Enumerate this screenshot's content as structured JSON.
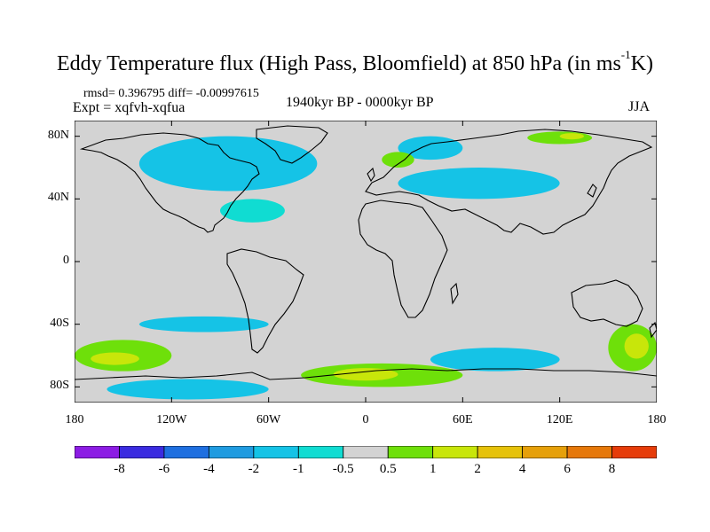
{
  "title": {
    "text": "Eddy Temperature flux (High Pass, Bloomfield) at 850 hPa (in ms",
    "sup": "-1",
    "suffix": "K)"
  },
  "stats_line": "rmsd= 0.396795 diff= -0.00997615",
  "experiment": "Expt = xqfvh-xqfua",
  "period": "1940kyr BP - 0000kyr BP",
  "season": "JJA",
  "map": {
    "y_ticks": [
      "80N",
      "40N",
      "0",
      "40S",
      "80S"
    ],
    "x_ticks": [
      "180",
      "120W",
      "60W",
      "0",
      "60E",
      "120E",
      "180"
    ],
    "ocean_color": "#d3d3d3",
    "coast_color": "#000000"
  },
  "colorbar": {
    "labels": [
      "-8",
      "-6",
      "-4",
      "-2",
      "-1",
      "-0.5",
      "0.5",
      "1",
      "2",
      "4",
      "6",
      "8"
    ],
    "colors": [
      "#8c1ce4",
      "#3a2be0",
      "#1e6fe0",
      "#1f9be0",
      "#15c3e6",
      "#10dcd2",
      "#d3d3d3",
      "#6ee00a",
      "#c8e60a",
      "#e6c20a",
      "#e6a00a",
      "#e6780a",
      "#e63c0a"
    ]
  },
  "chart_data": {
    "type": "heatmap",
    "projection": "cylindrical equidistant",
    "xlim": [
      -180,
      180
    ],
    "ylim": [
      -90,
      90
    ],
    "x_ticks": [
      -180,
      -120,
      -60,
      0,
      60,
      120,
      180
    ],
    "y_ticks": [
      80,
      40,
      0,
      -40,
      -80
    ],
    "contour_levels": [
      -8,
      -6,
      -4,
      -2,
      -1,
      -0.5,
      0.5,
      1,
      2,
      4,
      6,
      8
    ],
    "regions": [
      {
        "level_index": 4,
        "lon": [
          -140,
          -30
        ],
        "lat": [
          45,
          80
        ]
      },
      {
        "level_index": 5,
        "lon": [
          -90,
          -50
        ],
        "lat": [
          25,
          40
        ]
      },
      {
        "level_index": 4,
        "lon": [
          20,
          60
        ],
        "lat": [
          65,
          80
        ]
      },
      {
        "level_index": 7,
        "lon": [
          100,
          140
        ],
        "lat": [
          75,
          83
        ]
      },
      {
        "level_index": 8,
        "lon": [
          120,
          135
        ],
        "lat": [
          78,
          82
        ]
      },
      {
        "level_index": 4,
        "lon": [
          20,
          120
        ],
        "lat": [
          40,
          60
        ]
      },
      {
        "level_index": 7,
        "lon": [
          10,
          30
        ],
        "lat": [
          60,
          70
        ]
      },
      {
        "level_index": 4,
        "lon": [
          -140,
          -60
        ],
        "lat": [
          -45,
          -35
        ]
      },
      {
        "level_index": 7,
        "lon": [
          -180,
          -120
        ],
        "lat": [
          -70,
          -50
        ]
      },
      {
        "level_index": 8,
        "lon": [
          -170,
          -140
        ],
        "lat": [
          -66,
          -58
        ]
      },
      {
        "level_index": 4,
        "lon": [
          40,
          120
        ],
        "lat": [
          -70,
          -55
        ]
      },
      {
        "level_index": 7,
        "lon": [
          150,
          180
        ],
        "lat": [
          -70,
          -40
        ]
      },
      {
        "level_index": 8,
        "lon": [
          160,
          175
        ],
        "lat": [
          -62,
          -46
        ]
      },
      {
        "level_index": 7,
        "lon": [
          -40,
          60
        ],
        "lat": [
          -80,
          -65
        ]
      },
      {
        "level_index": 8,
        "lon": [
          -20,
          20
        ],
        "lat": [
          -76,
          -68
        ]
      },
      {
        "level_index": 4,
        "lon": [
          -160,
          -60
        ],
        "lat": [
          -88,
          -75
        ]
      }
    ]
  }
}
